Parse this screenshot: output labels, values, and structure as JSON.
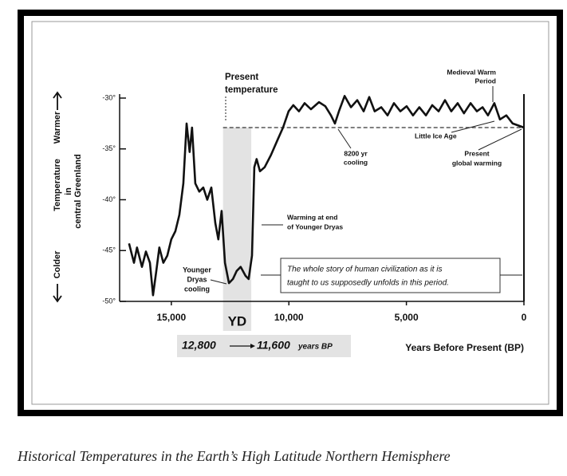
{
  "chart_data": {
    "type": "line",
    "caption": "Historical Temperatures in the Earth’s High Latitude Northern Hemisphere",
    "x_label": "Years Before Present (BP)",
    "y_label": [
      "Colder",
      "Temperature",
      "Warmer",
      "in",
      "central Greenland"
    ],
    "xlim": [
      17200,
      0
    ],
    "ylim": [
      -50,
      -30
    ],
    "xticks": [
      {
        "value": 15000,
        "label": "15,000"
      },
      {
        "value": 10000,
        "label": "10,000"
      },
      {
        "value": 5000,
        "label": "5,000"
      },
      0
    ],
    "yticks": [
      {
        "value": -30,
        "label": "-30°"
      },
      {
        "value": -35,
        "label": "-35°"
      },
      {
        "value": -40,
        "label": "-40°"
      },
      {
        "value": -45,
        "label": "-45°"
      },
      {
        "value": -50,
        "label": "-50°"
      }
    ],
    "present_temperature": -32.9,
    "yd_band": {
      "label": "YD",
      "range": [
        12800,
        11600
      ],
      "range_labels": [
        "12,800",
        "11,600",
        "years BP"
      ]
    },
    "series": [
      {
        "color": "#111111",
        "x": [
          16800,
          16590,
          16460,
          16250,
          16080,
          15910,
          15780,
          15640,
          15510,
          15340,
          15170,
          15000,
          14830,
          14660,
          14490,
          14350,
          14220,
          14120,
          13980,
          13810,
          13640,
          13470,
          13300,
          13130,
          13000,
          12860,
          12720,
          12550,
          12380,
          12220,
          12050,
          11840,
          11710,
          11570,
          11470,
          11370,
          11230,
          11030,
          10760,
          10480,
          10250,
          10010,
          9810,
          9570,
          9330,
          9060,
          8720,
          8450,
          8210,
          8040,
          7870,
          7630,
          7360,
          7090,
          6820,
          6580,
          6350,
          6070,
          5800,
          5530,
          5260,
          4990,
          4720,
          4450,
          4170,
          3900,
          3630,
          3360,
          3090,
          2820,
          2550,
          2270,
          2000,
          1760,
          1530,
          1260,
          1020,
          750,
          480,
          240,
          0
        ],
        "values": [
          -44.3,
          -46.2,
          -44.7,
          -46.6,
          -45.1,
          -46.2,
          -49.4,
          -47.0,
          -44.7,
          -46.2,
          -45.5,
          -43.9,
          -43.1,
          -41.5,
          -38.4,
          -32.5,
          -35.3,
          -32.9,
          -38.4,
          -39.2,
          -38.8,
          -40.0,
          -38.8,
          -42.3,
          -43.9,
          -41.1,
          -46.2,
          -48.2,
          -47.8,
          -47.0,
          -46.6,
          -47.5,
          -47.8,
          -45.5,
          -36.8,
          -36.0,
          -37.2,
          -36.8,
          -35.6,
          -34.1,
          -32.9,
          -31.3,
          -30.7,
          -31.3,
          -30.5,
          -31.1,
          -30.4,
          -30.8,
          -31.7,
          -32.5,
          -31.3,
          -29.8,
          -30.9,
          -30.2,
          -31.3,
          -29.9,
          -31.3,
          -30.9,
          -31.7,
          -30.5,
          -31.3,
          -30.8,
          -31.7,
          -30.9,
          -31.7,
          -30.7,
          -31.3,
          -30.2,
          -31.3,
          -30.5,
          -31.5,
          -30.5,
          -31.3,
          -30.9,
          -31.7,
          -30.5,
          -32.1,
          -31.7,
          -32.5,
          -32.7,
          -32.9
        ]
      }
    ],
    "annotations": [
      {
        "lines": [
          "Present",
          "temperature"
        ]
      },
      {
        "lines": [
          "Medieval Warm",
          "Period"
        ]
      },
      {
        "lines": [
          "Little Ice Age"
        ]
      },
      {
        "lines": [
          "8200 yr",
          "cooling"
        ]
      },
      {
        "lines": [
          "Present",
          "global warming"
        ]
      },
      {
        "lines": [
          "Warming at end",
          "of Younger Dryas"
        ]
      },
      {
        "lines": [
          "Younger",
          "Dryas",
          "cooling"
        ]
      },
      {
        "lines": [
          "The whole story of human civilization as it is",
          "taught to us supposedly unfolds in this period."
        ]
      }
    ]
  }
}
